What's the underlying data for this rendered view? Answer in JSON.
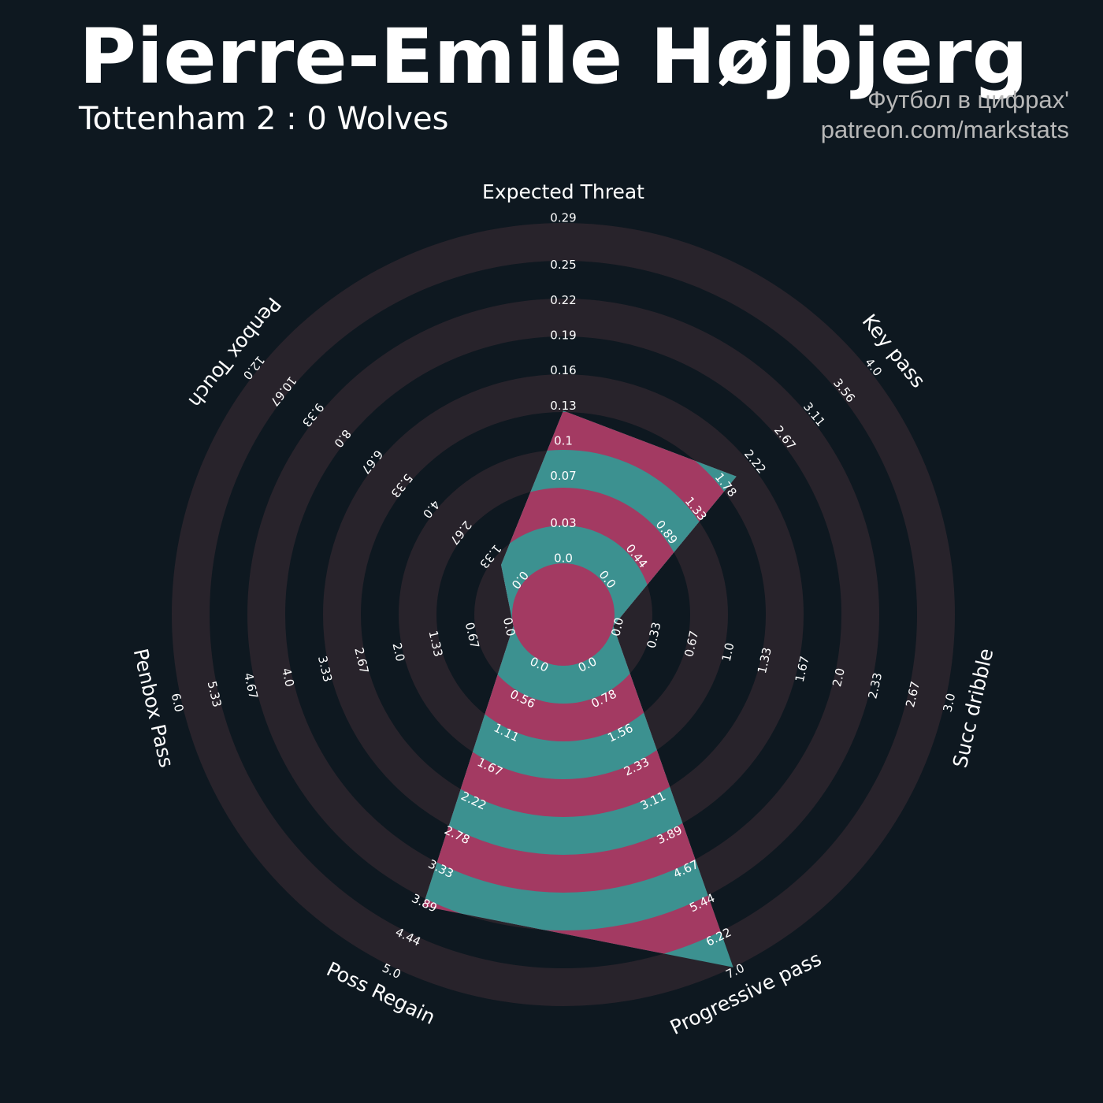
{
  "chart_data": {
    "type": "radar",
    "title": "Pierre-Emile Højbjerg",
    "subtitle": "Tottenham 2 : 0 Wolves",
    "credits": [
      "Футбол в цифрах'",
      "patreon.com/markstats"
    ],
    "categories": [
      "Expected Threat",
      "Key pass",
      "Succ dribble",
      "Progressive pass",
      "Poss Regain",
      "Penbox Pass",
      "Penbox Touch"
    ],
    "values": [
      0.13,
      2,
      0,
      7,
      4,
      0,
      1
    ],
    "colors": {
      "background": "#0e1820",
      "ring": "#28232b",
      "band_a": "#3c9190",
      "band_b": "#a33a62"
    },
    "axes": [
      {
        "lim": [
          0,
          0.29
        ],
        "ticks": [
          {
            "value": 0,
            "label": "0.0"
          },
          0.03,
          0.07,
          0.1,
          0.13,
          0.16,
          0.19,
          0.22,
          0.25,
          0.29
        ]
      },
      {
        "lim": [
          0,
          4
        ],
        "ticks": [
          {
            "value": 0,
            "label": "0.0"
          },
          0.44,
          0.89,
          1.33,
          1.78,
          2.22,
          2.67,
          3.11,
          3.56,
          {
            "value": 4,
            "label": "4.0"
          }
        ]
      },
      {
        "lim": [
          0,
          3
        ],
        "ticks": [
          {
            "value": 0,
            "label": "0.0"
          },
          0.33,
          0.67,
          {
            "value": 1,
            "label": "1.0"
          },
          1.33,
          1.67,
          {
            "value": 2,
            "label": "2.0"
          },
          2.33,
          2.67,
          {
            "value": 3,
            "label": "3.0"
          }
        ]
      },
      {
        "lim": [
          0,
          7
        ],
        "ticks": [
          {
            "value": 0,
            "label": "0.0"
          },
          0.78,
          1.56,
          2.33,
          3.11,
          3.89,
          4.67,
          5.44,
          6.22,
          {
            "value": 7,
            "label": "7.0"
          }
        ]
      },
      {
        "lim": [
          0,
          5
        ],
        "ticks": [
          {
            "value": 0,
            "label": "0.0"
          },
          0.56,
          1.11,
          1.67,
          2.22,
          2.78,
          3.33,
          3.89,
          4.44,
          {
            "value": 5,
            "label": "5.0"
          }
        ]
      },
      {
        "lim": [
          0,
          6
        ],
        "ticks": [
          {
            "value": 0,
            "label": "0.0"
          },
          0.67,
          1.33,
          {
            "value": 2,
            "label": "2.0"
          },
          2.67,
          3.33,
          {
            "value": 4,
            "label": "4.0"
          },
          4.67,
          5.33,
          {
            "value": 6,
            "label": "6.0"
          }
        ]
      },
      {
        "lim": [
          0,
          12
        ],
        "ticks": [
          {
            "value": 0,
            "label": "0.0"
          },
          1.33,
          2.67,
          {
            "value": 4,
            "label": "4.0"
          },
          5.33,
          6.67,
          {
            "value": 8,
            "label": "8.0"
          },
          9.33,
          10.67,
          {
            "value": 12,
            "label": "12.0"
          }
        ]
      }
    ]
  }
}
